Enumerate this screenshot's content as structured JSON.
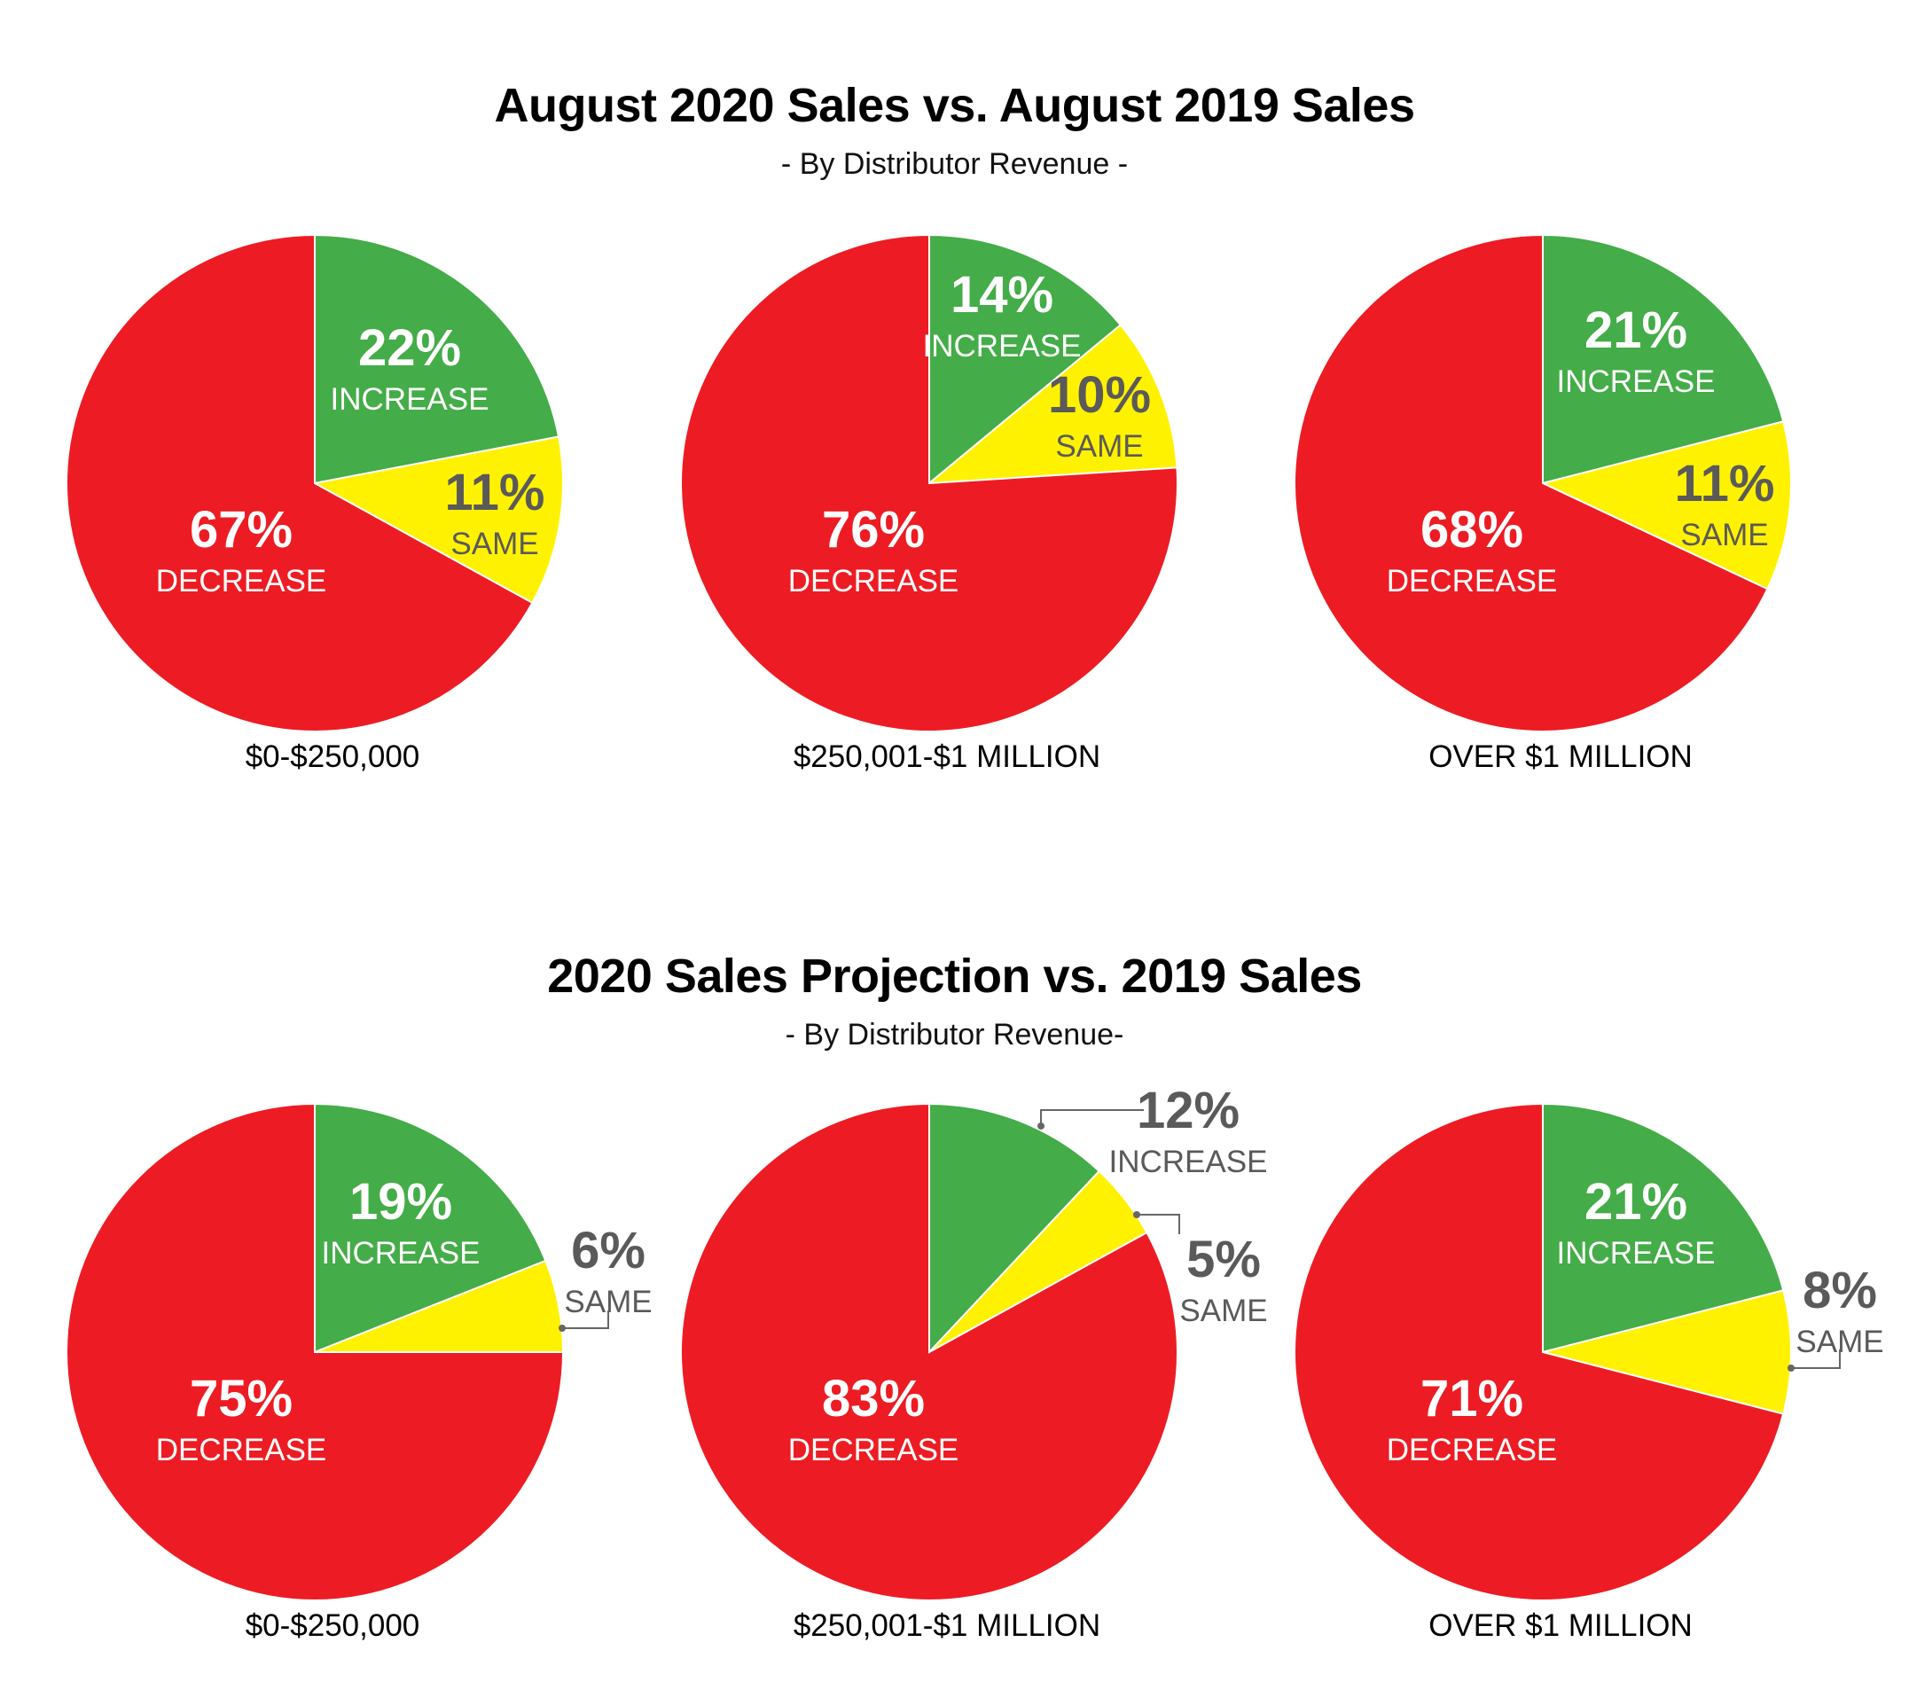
{
  "sections": [
    {
      "title": "August 2020 Sales vs. August 2019 Sales",
      "subtitle": "- By Distributor Revenue -"
    },
    {
      "title": "2020 Sales Projection vs. 2019 Sales",
      "subtitle": "- By Distributor Revenue-"
    }
  ],
  "colors": {
    "increase": "#44AC48",
    "same": "#FFF200",
    "decrease": "#ED1C24",
    "light_text": "#FFFFFF",
    "dark_text": "#5A5A5A",
    "leader": "#666666"
  },
  "chart_data": [
    {
      "type": "pie",
      "section": 0,
      "category": "$0-$250,000",
      "slices": [
        {
          "label": "INCREASE",
          "percent_text": "22%",
          "value": 22
        },
        {
          "label": "SAME",
          "percent_text": "11%",
          "value": 11
        },
        {
          "label": "DECREASE",
          "percent_text": "67%",
          "value": 67
        }
      ]
    },
    {
      "type": "pie",
      "section": 0,
      "category": "$250,001-$1 MILLION",
      "slices": [
        {
          "label": "INCREASE",
          "percent_text": "14%",
          "value": 14
        },
        {
          "label": "SAME",
          "percent_text": "10%",
          "value": 10
        },
        {
          "label": "DECREASE",
          "percent_text": "76%",
          "value": 76
        }
      ]
    },
    {
      "type": "pie",
      "section": 0,
      "category": "OVER $1 MILLION",
      "slices": [
        {
          "label": "INCREASE",
          "percent_text": "21%",
          "value": 21
        },
        {
          "label": "SAME",
          "percent_text": "11%",
          "value": 11
        },
        {
          "label": "DECREASE",
          "percent_text": "68%",
          "value": 68
        }
      ]
    },
    {
      "type": "pie",
      "section": 1,
      "category": "$0-$250,000",
      "slices": [
        {
          "label": "INCREASE",
          "percent_text": "19%",
          "value": 19
        },
        {
          "label": "SAME",
          "percent_text": "6%",
          "value": 6
        },
        {
          "label": "DECREASE",
          "percent_text": "75%",
          "value": 75
        }
      ]
    },
    {
      "type": "pie",
      "section": 1,
      "category": "$250,001-$1 MILLION",
      "slices": [
        {
          "label": "INCREASE",
          "percent_text": "12%",
          "value": 12
        },
        {
          "label": "SAME",
          "percent_text": "5%",
          "value": 5
        },
        {
          "label": "DECREASE",
          "percent_text": "83%",
          "value": 83
        }
      ]
    },
    {
      "type": "pie",
      "section": 1,
      "category": "OVER $1 MILLION",
      "slices": [
        {
          "label": "INCREASE",
          "percent_text": "21%",
          "value": 21
        },
        {
          "label": "SAME",
          "percent_text": "8%",
          "value": 8
        },
        {
          "label": "DECREASE",
          "percent_text": "71%",
          "value": 71
        }
      ]
    }
  ]
}
